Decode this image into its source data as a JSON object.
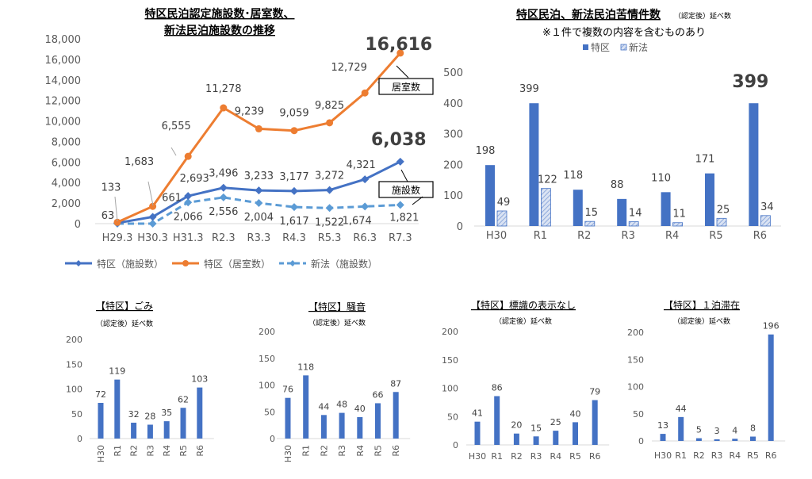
{
  "chart_data": [
    {
      "type": "line",
      "title": [
        "特区民泊認定施設数･居室数、",
        "新法民泊施設数の推移"
      ],
      "categories": [
        "H29.3",
        "H30.3",
        "H31.3",
        "R2.3",
        "R3.3",
        "R4.3",
        "R5.3",
        "R6.3",
        "R7.3"
      ],
      "ylim": [
        0,
        18000
      ],
      "yticks": [
        "0",
        "2,000",
        "4,000",
        "6,000",
        "8,000",
        "10,000",
        "12,000",
        "14,000",
        "16,000",
        "18,000"
      ],
      "grid": false,
      "legend_position": "bottom",
      "series": [
        {
          "name": "特区（施設数）",
          "color": "#4472C4",
          "style": "solid",
          "marker": "diamond",
          "values": [
            63,
            661,
            2693,
            3496,
            3233,
            3177,
            3272,
            4321,
            6038
          ],
          "labels": [
            "63",
            "661",
            "2,693",
            "3,496",
            "3,233",
            "3,177",
            "3,272",
            "4,321",
            "6,038"
          ]
        },
        {
          "name": "特区（居室数）",
          "color": "#ED7D31",
          "style": "solid",
          "marker": "circle",
          "values": [
            133,
            1683,
            6555,
            11278,
            9239,
            9059,
            9825,
            12729,
            16616
          ],
          "labels": [
            "133",
            "1,683",
            "6,555",
            "11,278",
            "9,239",
            "9,059",
            "9,825",
            "12,729",
            "16,616"
          ]
        },
        {
          "name": "新法（施設数）",
          "color": "#5B9BD5",
          "style": "dashed",
          "marker": "diamond",
          "values": [
            0,
            0,
            2066,
            2556,
            2004,
            1617,
            1522,
            1674,
            1821
          ],
          "labels": [
            null,
            null,
            "2,066",
            "2,556",
            "2,004",
            "1,617",
            "1,522",
            "1,674",
            "1,821"
          ]
        }
      ],
      "callouts": [
        "居室数",
        "施設数"
      ]
    },
    {
      "type": "bar",
      "title": "特区民泊、新法民泊苦情件数",
      "subtitle": "（認定後）延べ数",
      "note": "※１件で複数の内容を含むものあり",
      "categories": [
        "H30",
        "R1",
        "R2",
        "R3",
        "R4",
        "R5",
        "R6"
      ],
      "ylim": [
        0,
        500
      ],
      "yticks": [
        "0",
        "100",
        "200",
        "300",
        "400",
        "500"
      ],
      "legend_position": "top",
      "series": [
        {
          "name": "特区",
          "color": "#4472C4",
          "fill": "solid",
          "values": [
            198,
            399,
            118,
            88,
            110,
            171,
            399
          ]
        },
        {
          "name": "新法",
          "color": "#4472C4",
          "fill": "hatched",
          "values": [
            49,
            122,
            15,
            14,
            11,
            25,
            34
          ]
        }
      ]
    },
    {
      "type": "bar",
      "title": "【特区】ごみ",
      "subtitle": "（認定後）延べ数",
      "categories": [
        "H30",
        "R1",
        "R2",
        "R3",
        "R4",
        "R5",
        "R6"
      ],
      "ylim": [
        0,
        200
      ],
      "yticks": [
        "0",
        "50",
        "100",
        "150",
        "200"
      ],
      "color": "#4472C4",
      "values": [
        72,
        119,
        32,
        28,
        35,
        62,
        103
      ]
    },
    {
      "type": "bar",
      "title": "【特区】騒音",
      "subtitle": "（認定後）延べ数",
      "categories": [
        "H30",
        "R1",
        "R2",
        "R3",
        "R4",
        "R5",
        "R6"
      ],
      "ylim": [
        0,
        200
      ],
      "yticks": [
        "0",
        "50",
        "100",
        "150",
        "200"
      ],
      "color": "#4472C4",
      "values": [
        76,
        118,
        44,
        48,
        40,
        66,
        87
      ]
    },
    {
      "type": "bar",
      "title": "【特区】標識の表示なし",
      "subtitle": "（認定後）延べ数",
      "categories": [
        "H30",
        "R1",
        "R2",
        "R3",
        "R4",
        "R5",
        "R6"
      ],
      "ylim": [
        0,
        200
      ],
      "yticks": [
        "0",
        "50",
        "100",
        "150",
        "200"
      ],
      "color": "#4472C4",
      "values": [
        41,
        86,
        20,
        15,
        25,
        40,
        79
      ]
    },
    {
      "type": "bar",
      "title": "【特区】１泊滞在",
      "subtitle": "（認定後）延べ数",
      "categories": [
        "H30",
        "R1",
        "R2",
        "R3",
        "R4",
        "R5",
        "R6"
      ],
      "ylim": [
        0,
        200
      ],
      "yticks": [
        "0",
        "50",
        "100",
        "150",
        "200"
      ],
      "color": "#4472C4",
      "values": [
        13,
        44,
        5,
        3,
        4,
        8,
        196
      ]
    }
  ]
}
